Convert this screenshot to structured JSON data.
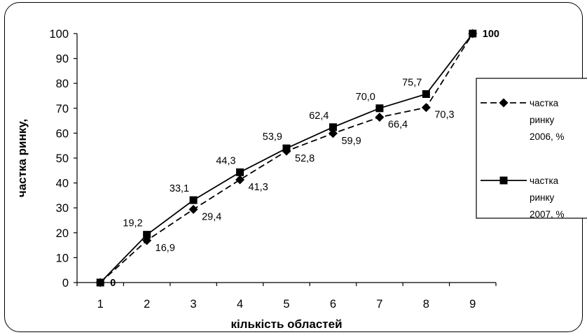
{
  "chart_data": {
    "type": "line",
    "x": [
      1,
      2,
      3,
      4,
      5,
      6,
      7,
      8,
      9
    ],
    "xlabel": "кількість областей",
    "ylabel": "частка ринку,",
    "ylim": [
      0,
      100
    ],
    "yticks": [
      0,
      10,
      20,
      30,
      40,
      50,
      60,
      70,
      80,
      90,
      100
    ],
    "grid": false,
    "legend_position": "right",
    "series": [
      {
        "name": [
          "частка",
          "ринку",
          "2006, %"
        ],
        "style": "dashed",
        "marker": "diamond",
        "color": "#000000",
        "values": [
          0,
          16.9,
          29.4,
          41.3,
          52.8,
          59.9,
          66.4,
          70.3,
          100
        ],
        "labels": [
          "0",
          "16,9",
          "29,4",
          "41,3",
          "52,8",
          "59,9",
          "66,4",
          "70,3",
          "100"
        ]
      },
      {
        "name": [
          "частка",
          "ринку",
          "2007, %"
        ],
        "style": "solid",
        "marker": "square",
        "color": "#000000",
        "values": [
          0,
          19.2,
          33.1,
          44.3,
          53.9,
          62.4,
          70.0,
          75.7,
          100
        ],
        "labels": [
          "0",
          "19,2",
          "33,1",
          "44,3",
          "53,9",
          "62,4",
          "70,0",
          "75,7",
          "100"
        ]
      }
    ]
  }
}
